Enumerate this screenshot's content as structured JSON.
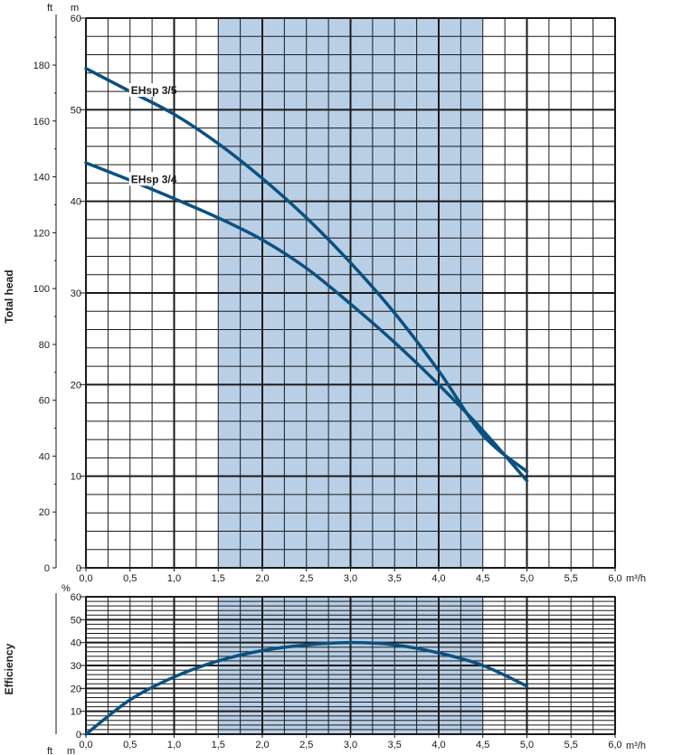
{
  "chart_data": [
    {
      "type": "line",
      "title": "",
      "xlabel": "",
      "ylabel": "Total head",
      "x_unit": "m³/h",
      "xlim": [
        0,
        6
      ],
      "ylim": [
        0,
        60
      ],
      "y_unit": "m",
      "y2_unit": "ft",
      "y2lim": [
        0,
        196.85
      ],
      "shaded_range": [
        1.5,
        4.5
      ],
      "shade_color": "#b9cfe6",
      "line_color": "#0a5181",
      "x_ticks": [
        "0,0",
        "0,5",
        "1,0",
        "1,5",
        "2,0",
        "2,5",
        "3,0",
        "3,5",
        "4,0",
        "4,5",
        "5,0",
        "5,5",
        "6,0"
      ],
      "y_ticks": [
        "0",
        "10",
        "20",
        "30",
        "40",
        "50",
        "60"
      ],
      "y2_ticks": [
        "0",
        "20",
        "40",
        "60",
        "80",
        "100",
        "120",
        "140",
        "160",
        "180"
      ],
      "series": [
        {
          "name": "EHsp 3/5",
          "x": [
            0,
            0.5,
            1.0,
            1.5,
            2.0,
            2.5,
            3.0,
            3.5,
            4.0,
            4.5,
            5.0
          ],
          "y": [
            54.5,
            52.0,
            49.5,
            46.3,
            42.5,
            38.2,
            33.3,
            27.8,
            21.5,
            14.5,
            10.5
          ]
        },
        {
          "name": "EHsp 3/4",
          "x": [
            0,
            0.5,
            1.0,
            1.5,
            2.0,
            2.5,
            3.0,
            3.5,
            4.0,
            4.5,
            5.0
          ],
          "y": [
            44.2,
            42.3,
            40.3,
            38.2,
            35.8,
            32.7,
            28.8,
            24.6,
            20.0,
            15.0,
            9.5
          ]
        }
      ]
    },
    {
      "type": "line",
      "title": "",
      "xlabel": "",
      "ylabel": "Efficiency",
      "x_unit": "m³/h",
      "xlim": [
        0,
        6
      ],
      "ylim": [
        0,
        60
      ],
      "y_unit": "%",
      "shaded_range": [
        1.5,
        4.5
      ],
      "shade_color": "#b9cfe6",
      "line_color": "#0a5181",
      "x_ticks": [
        "0,0",
        "0,5",
        "1,0",
        "1,5",
        "2,0",
        "2,5",
        "3,0",
        "3,5",
        "4,0",
        "4,5",
        "5,0",
        "5,5",
        "6,0"
      ],
      "y_ticks": [
        "0",
        "10",
        "20",
        "30",
        "40",
        "50",
        "60"
      ],
      "series": [
        {
          "name": "",
          "x": [
            0,
            0.5,
            1.0,
            1.5,
            2.0,
            2.5,
            3.0,
            3.5,
            4.0,
            4.5,
            5.0
          ],
          "y": [
            0,
            15,
            25,
            32,
            36.5,
            39,
            40,
            39,
            35.5,
            30,
            21
          ]
        }
      ]
    }
  ],
  "bottom_units": {
    "ft": "ft",
    "m": "m"
  }
}
